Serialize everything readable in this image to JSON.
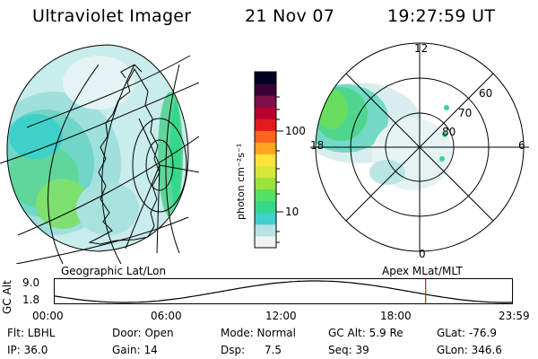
{
  "header": {
    "instrument": "Ultraviolet Imager",
    "date": "21 Nov 07",
    "time": "19:27:59 UT"
  },
  "geo_panel": {
    "label": "Geographic Lat/Lon"
  },
  "polar_panel": {
    "label": "Apex MLat/MLT",
    "mlt_labels": {
      "top": "12",
      "left": "18",
      "right": "6",
      "bottom": "0"
    },
    "lat_labels": [
      "60",
      "70",
      "80"
    ]
  },
  "colorbar": {
    "unit_label": "photon cm⁻²s⁻¹",
    "tick_labels": [
      "100",
      "10"
    ],
    "scale": "log",
    "colors": [
      "#f2f2f2",
      "#b6e4e4",
      "#3fd0d0",
      "#35d88a",
      "#53e063",
      "#9be33b",
      "#d5e83a",
      "#ffe23a",
      "#ffa51f",
      "#ff6320",
      "#e11b1b",
      "#b7002f",
      "#7f0f4a",
      "#3a003a",
      "#000020"
    ]
  },
  "altitude_plot": {
    "axis_label": "GC Alt",
    "y_ticks": [
      "9.0",
      "1.8"
    ],
    "x_ticks": [
      "00:00",
      "06:00",
      "12:00",
      "18:00",
      "23:59"
    ],
    "current_marker_color": "#e01010"
  },
  "info": {
    "flt": "Flt: LBHL",
    "ip": "IP: 36.0",
    "door": "Door: Open",
    "gain": "Gain: 14",
    "mode_label": "Mode: Normal",
    "dsp_label": "Dsp:",
    "dsp_value": "7.5",
    "gc_alt": "GC Alt: 5.9 Re",
    "seq": "Seq: 39",
    "glat": "GLat: -76.9",
    "glon": "GLon: 346.6"
  }
}
